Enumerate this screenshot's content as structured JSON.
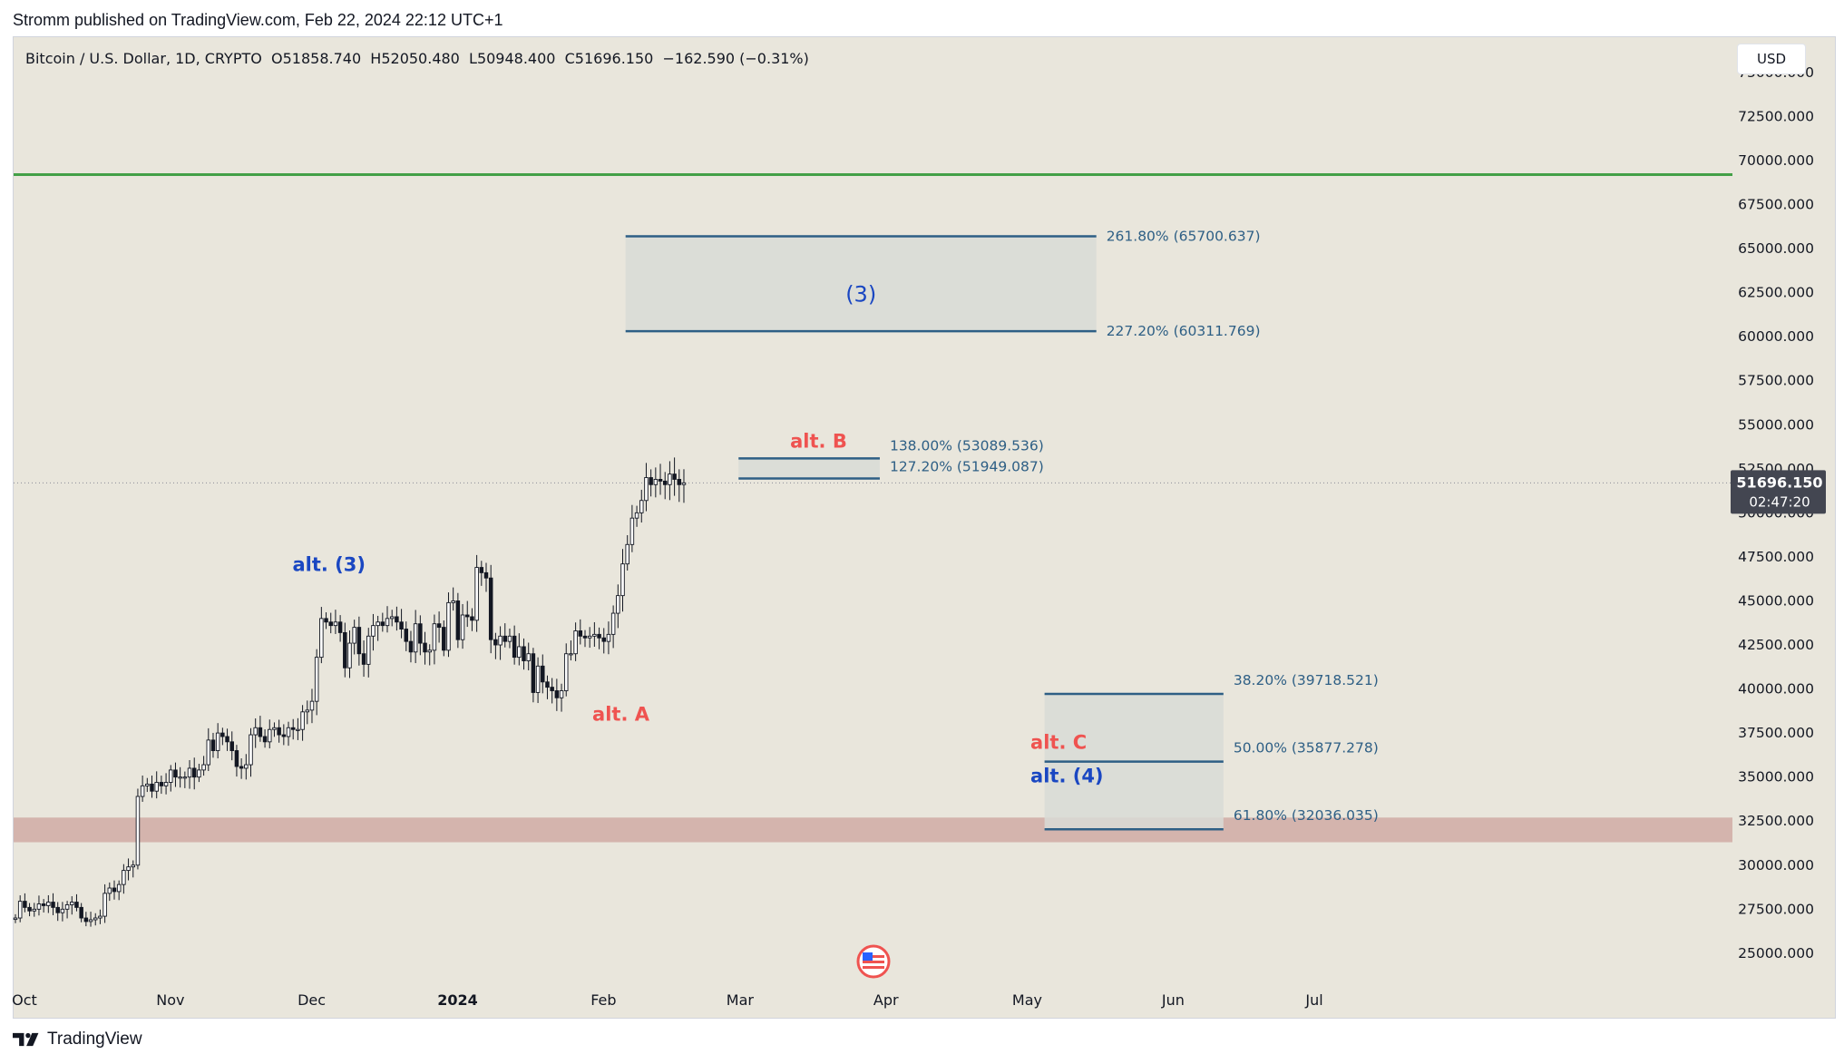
{
  "publish_line": "Stromm published on TradingView.com, Feb 22, 2024 22:12 UTC+1",
  "header": {
    "ohlc": "Bitcoin / U.S. Dollar, 1D, CRYPTO  O51858.740  H52050.480  L50948.400  C51696.150  −162.590 (−0.31%)"
  },
  "currency_button": "USD",
  "footer": {
    "brand": "TradingView",
    "logo_icon": "tradingview-logo-icon"
  },
  "colors": {
    "chart_bg": "#e9e6dc",
    "green_line": "#43a047",
    "support_zone": "#d4b4ad",
    "box_line": "#2e5f85",
    "box_fill": "#d8dad6",
    "red_label": "#ef5350",
    "blue_label": "#1a47c2",
    "price_badge": "#434651"
  },
  "price_badge": {
    "price": "51696.150",
    "countdown": "02:47:20"
  },
  "chart_data": {
    "type": "candlestick",
    "title": "Bitcoin / U.S. Dollar, 1D, CRYPTO",
    "ylim": [
      23500,
      77000
    ],
    "y_ticks": [
      25000,
      27500,
      30000,
      32500,
      35000,
      37500,
      40000,
      42500,
      45000,
      47500,
      50000,
      52500,
      55000,
      57500,
      60000,
      62500,
      65000,
      67500,
      70000,
      72500,
      75000
    ],
    "y_tick_labels": [
      "25000.000",
      "27500.000",
      "30000.000",
      "32500.000",
      "35000.000",
      "37500.000",
      "40000.000",
      "42500.000",
      "45000.000",
      "47500.000",
      "50000.000",
      "52500.000",
      "55000.000",
      "57500.000",
      "60000.000",
      "62500.000",
      "65000.000",
      "67500.000",
      "70000.000",
      "72500.000",
      "75000.000"
    ],
    "x_ticks": [
      {
        "day": 0,
        "label": "Oct"
      },
      {
        "day": 31,
        "label": "Nov"
      },
      {
        "day": 61,
        "label": "Dec"
      },
      {
        "day": 92,
        "label": "2024"
      },
      {
        "day": 123,
        "label": "Feb"
      },
      {
        "day": 152,
        "label": "Mar"
      },
      {
        "day": 183,
        "label": "Apr"
      },
      {
        "day": 213,
        "label": "May"
      },
      {
        "day": 244,
        "label": "Jun"
      },
      {
        "day": 274,
        "label": "Jul"
      }
    ],
    "closes": [
      27000,
      27950,
      27600,
      27400,
      27500,
      27800,
      27700,
      27900,
      27600,
      27300,
      27500,
      27750,
      27900,
      27600,
      27000,
      26800,
      26900,
      27000,
      27100,
      28400,
      28700,
      28500,
      28900,
      29700,
      29900,
      30000,
      33900,
      34500,
      34600,
      34200,
      34700,
      34500,
      34700,
      35400,
      35000,
      35000,
      35000,
      35500,
      35000,
      35400,
      35700,
      37100,
      36500,
      37500,
      37300,
      37000,
      36500,
      35600,
      35500,
      35700,
      37400,
      37800,
      37300,
      37000,
      37700,
      37800,
      37400,
      37300,
      37800,
      37700,
      37700,
      38700,
      38800,
      39300,
      41800,
      44000,
      43800,
      43600,
      43800,
      43200,
      41200,
      42600,
      43500,
      42000,
      41400,
      43000,
      43600,
      43800,
      43600,
      44000,
      44100,
      43800,
      43400,
      42700,
      42100,
      43700,
      42600,
      42100,
      42200,
      43700,
      43500,
      42200,
      44900,
      45000,
      42800,
      44200,
      44100,
      43900,
      46900,
      46600,
      46300,
      42800,
      42500,
      43000,
      42700,
      43000,
      41800,
      42400,
      41600,
      42000,
      39800,
      41300,
      40400,
      40100,
      39900,
      39500,
      39900,
      42000,
      42000,
      43300,
      43000,
      42900,
      43000,
      43100,
      42900,
      42700,
      43100,
      44300,
      45300,
      47100,
      48200,
      49700,
      50000,
      50700,
      52000,
      51600,
      51900,
      51800,
      51600,
      52200,
      51900,
      51600,
      51700
    ],
    "horizontal_levels": [
      {
        "name": "green-resistance-line",
        "price": 69200
      }
    ],
    "zones": [
      {
        "name": "support-zone",
        "from_price": 31300,
        "to_price": 32700
      }
    ],
    "fib_boxes": [
      {
        "name": "wave-3-target-box",
        "x_from_day": 130,
        "x_to_day": 230,
        "levels": [
          {
            "price": 65700.637,
            "label": "261.80% (65700.637)"
          },
          {
            "price": 60311.769,
            "label": "227.20% (60311.769)"
          }
        ]
      },
      {
        "name": "alt-b-box",
        "x_from_day": 154,
        "x_to_day": 184,
        "levels": [
          {
            "price": 53089.536,
            "label": "138.00% (53089.536)"
          },
          {
            "price": 51949.087,
            "label": "127.20% (51949.087)"
          }
        ]
      },
      {
        "name": "wave-4-target-box",
        "x_from_day": 219,
        "x_to_day": 257,
        "levels": [
          {
            "price": 39718.521,
            "label": "38.20% (39718.521)"
          },
          {
            "price": 35877.278,
            "label": "50.00% (35877.278)"
          },
          {
            "price": 32036.035,
            "label": "61.80% (32036.035)"
          }
        ]
      }
    ],
    "wave_labels": [
      {
        "text": "(3)",
        "day": 180,
        "price": 62000,
        "color": "blue"
      },
      {
        "text": "alt. (3)",
        "day": 67,
        "price": 46700,
        "color": "blue"
      },
      {
        "text": "alt. A",
        "day": 129,
        "price": 38200,
        "color": "red"
      },
      {
        "text": "alt. B",
        "day": 171,
        "price": 53700,
        "color": "red"
      },
      {
        "text": "alt. C",
        "day": 216,
        "price": 36600,
        "color": "red"
      },
      {
        "text": "alt. (4)",
        "day": 216,
        "price": 34700,
        "color": "blue"
      }
    ],
    "current_price": 51696.15
  }
}
